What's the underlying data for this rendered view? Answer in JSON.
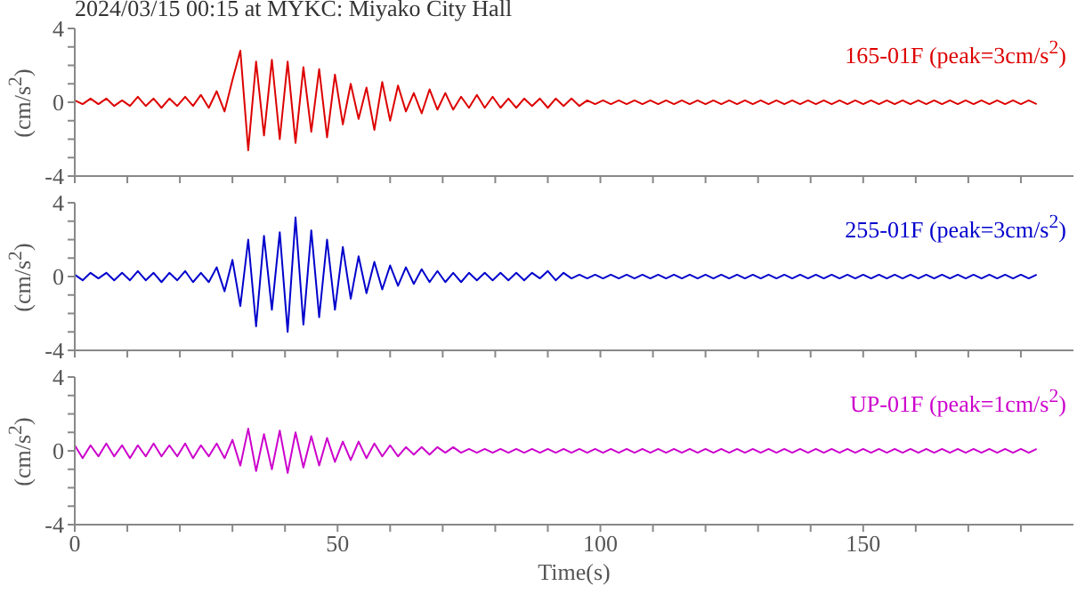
{
  "chart_data": [
    {
      "type": "line",
      "title": "2024/03/15 00:15 at MYKC: Miyako City Hall",
      "annotations": [
        "165-01F (peak=3cm/s$^{2}$)"
      ],
      "ylabel": "(cm/s$^{2}$)",
      "tick_labels": "y",
      "x": [
        0,
        1.5,
        3,
        4.5,
        6,
        7.5,
        9,
        10.5,
        12,
        13.5,
        15,
        16.5,
        18,
        19.5,
        21,
        22.5,
        24,
        25.5,
        27,
        28.5,
        30,
        31.5,
        33,
        34.5,
        36,
        37.5,
        39,
        40.5,
        42,
        43.5,
        45,
        46.5,
        48,
        49.5,
        51,
        52.5,
        54,
        55.5,
        57,
        58.5,
        60,
        61.5,
        63,
        64.5,
        66,
        67.5,
        69,
        70.5,
        72,
        73.5,
        75,
        76.5,
        78,
        79.5,
        81,
        82.5,
        84,
        85.5,
        87,
        88.5,
        90,
        91.5,
        93,
        94.5,
        96,
        97.5,
        99,
        100.5,
        102,
        103.5,
        105,
        106.5,
        108,
        109.5,
        111,
        112.5,
        114,
        115.5,
        117,
        118.5,
        120,
        121.5,
        123,
        124.5,
        126,
        127.5,
        129,
        130.5,
        132,
        133.5,
        135,
        136.5,
        138,
        139.5,
        141,
        142.5,
        144,
        145.5,
        147,
        148.5,
        150,
        151.5,
        153,
        154.5,
        156,
        157.5,
        159,
        160.5,
        162,
        163.5,
        165,
        166.5,
        168,
        169.5,
        171,
        172.5,
        174,
        175.5,
        177,
        178.5,
        180,
        181.5,
        183
      ],
      "series": [
        {
          "color": "#dd0000",
          "values": [
            0.1,
            -0.1,
            0.2,
            -0.1,
            0.2,
            -0.2,
            0.1,
            -0.2,
            0.3,
            -0.2,
            0.2,
            -0.3,
            0.2,
            -0.2,
            0.3,
            -0.2,
            0.4,
            -0.3,
            0.6,
            -0.5,
            1.2,
            2.8,
            -2.6,
            2.2,
            -1.8,
            2.3,
            -2.0,
            2.2,
            -2.2,
            1.9,
            -1.6,
            1.8,
            -1.9,
            1.5,
            -1.2,
            1.0,
            -0.9,
            0.8,
            -1.5,
            1.1,
            -1.0,
            0.9,
            -0.5,
            0.5,
            -0.6,
            0.7,
            -0.4,
            0.5,
            -0.4,
            0.3,
            -0.3,
            0.4,
            -0.3,
            0.3,
            -0.3,
            0.2,
            -0.3,
            0.2,
            -0.2,
            0.2,
            -0.3,
            0.2,
            -0.2,
            0.2,
            -0.2,
            0.1,
            -0.1,
            0.1,
            -0.1,
            0.1,
            -0.1,
            0.1,
            -0.1,
            0.1,
            -0.1,
            0.1,
            -0.1,
            0.1,
            -0.1,
            0.1,
            -0.1,
            0.1,
            -0.1,
            0.1,
            -0.1,
            0.1,
            -0.1,
            0.1,
            -0.1,
            0.1,
            -0.1,
            0.1,
            -0.1,
            0.1,
            -0.1,
            0.1,
            -0.1,
            0.1,
            -0.1,
            0.1,
            -0.1,
            0.1,
            -0.1,
            0.1,
            -0.1,
            0.1,
            -0.1,
            0.1,
            -0.1,
            0.1,
            -0.1,
            0.1,
            -0.1,
            0.1,
            -0.1,
            0.1,
            -0.1,
            0.1,
            -0.1,
            0.1,
            -0.1,
            0.1,
            -0.1
          ]
        }
      ],
      "xlim": [
        0,
        190
      ],
      "xticks": [
        0,
        {
          "value": 10,
          "label": null
        },
        {
          "value": 20,
          "label": null
        },
        {
          "value": 30,
          "label": null
        },
        {
          "value": 40,
          "label": null
        },
        50,
        {
          "value": 60,
          "label": null
        },
        {
          "value": 70,
          "label": null
        },
        {
          "value": 80,
          "label": null
        },
        {
          "value": 90,
          "label": null
        },
        100,
        {
          "value": 110,
          "label": null
        },
        {
          "value": 120,
          "label": null
        },
        {
          "value": 130,
          "label": null
        },
        {
          "value": 140,
          "label": null
        },
        150,
        {
          "value": 160,
          "label": null
        },
        {
          "value": 170,
          "label": null
        },
        {
          "value": 180,
          "label": null
        }
      ],
      "ylim": [
        -4,
        4
      ],
      "yticks": [
        -4,
        {
          "value": -3,
          "label": null
        },
        {
          "value": -2,
          "label": null
        },
        {
          "value": -1,
          "label": null
        },
        0,
        {
          "value": 1,
          "label": null
        },
        {
          "value": 2,
          "label": null
        },
        {
          "value": 3,
          "label": null
        },
        4
      ]
    },
    {
      "type": "line",
      "annotations": [
        "255-01F (peak=3cm/s$^{2}$)"
      ],
      "ylabel": "(cm/s$^{2}$)",
      "tick_labels": "y",
      "x": [
        0,
        1.5,
        3,
        4.5,
        6,
        7.5,
        9,
        10.5,
        12,
        13.5,
        15,
        16.5,
        18,
        19.5,
        21,
        22.5,
        24,
        25.5,
        27,
        28.5,
        30,
        31.5,
        33,
        34.5,
        36,
        37.5,
        39,
        40.5,
        42,
        43.5,
        45,
        46.5,
        48,
        49.5,
        51,
        52.5,
        54,
        55.5,
        57,
        58.5,
        60,
        61.5,
        63,
        64.5,
        66,
        67.5,
        69,
        70.5,
        72,
        73.5,
        75,
        76.5,
        78,
        79.5,
        81,
        82.5,
        84,
        85.5,
        87,
        88.5,
        90,
        91.5,
        93,
        94.5,
        96,
        97.5,
        99,
        100.5,
        102,
        103.5,
        105,
        106.5,
        108,
        109.5,
        111,
        112.5,
        114,
        115.5,
        117,
        118.5,
        120,
        121.5,
        123,
        124.5,
        126,
        127.5,
        129,
        130.5,
        132,
        133.5,
        135,
        136.5,
        138,
        139.5,
        141,
        142.5,
        144,
        145.5,
        147,
        148.5,
        150,
        151.5,
        153,
        154.5,
        156,
        157.5,
        159,
        160.5,
        162,
        163.5,
        165,
        166.5,
        168,
        169.5,
        171,
        172.5,
        174,
        175.5,
        177,
        178.5,
        180,
        181.5,
        183
      ],
      "series": [
        {
          "color": "#0000cc",
          "values": [
            0.1,
            -0.2,
            0.2,
            -0.1,
            0.2,
            -0.2,
            0.2,
            -0.2,
            0.3,
            -0.2,
            0.2,
            -0.3,
            0.2,
            -0.2,
            0.3,
            -0.3,
            0.2,
            -0.3,
            0.5,
            -0.8,
            0.9,
            -1.6,
            2.0,
            -2.7,
            2.2,
            -1.8,
            2.4,
            -3.0,
            3.2,
            -2.6,
            2.5,
            -2.2,
            2.0,
            -1.8,
            1.6,
            -1.2,
            1.1,
            -0.9,
            0.8,
            -0.7,
            0.6,
            -0.5,
            0.5,
            -0.4,
            0.4,
            -0.3,
            0.3,
            -0.3,
            0.2,
            -0.3,
            0.2,
            -0.2,
            0.2,
            -0.2,
            0.2,
            -0.2,
            0.2,
            -0.2,
            0.2,
            -0.1,
            0.3,
            -0.2,
            0.2,
            -0.1,
            0.1,
            -0.1,
            0.1,
            -0.1,
            0.1,
            -0.1,
            0.1,
            -0.1,
            0.1,
            -0.1,
            0.1,
            -0.1,
            0.1,
            -0.1,
            0.1,
            -0.1,
            0.1,
            -0.1,
            0.1,
            -0.1,
            0.1,
            -0.1,
            0.1,
            -0.1,
            0.1,
            -0.1,
            0.1,
            -0.1,
            0.1,
            -0.1,
            0.1,
            -0.1,
            0.1,
            -0.1,
            0.1,
            -0.1,
            0.1,
            -0.1,
            0.1,
            -0.1,
            0.1,
            -0.1,
            0.1,
            -0.1,
            0.1,
            -0.1,
            0.1,
            -0.1,
            0.1,
            -0.1,
            0.1,
            -0.1,
            0.1,
            -0.1,
            0.1,
            -0.1,
            0.1,
            -0.1,
            0.1
          ]
        }
      ],
      "xlim": [
        0,
        190
      ],
      "xticks": [
        0,
        {
          "value": 10,
          "label": null
        },
        {
          "value": 20,
          "label": null
        },
        {
          "value": 30,
          "label": null
        },
        {
          "value": 40,
          "label": null
        },
        50,
        {
          "value": 60,
          "label": null
        },
        {
          "value": 70,
          "label": null
        },
        {
          "value": 80,
          "label": null
        },
        {
          "value": 90,
          "label": null
        },
        100,
        {
          "value": 110,
          "label": null
        },
        {
          "value": 120,
          "label": null
        },
        {
          "value": 130,
          "label": null
        },
        {
          "value": 140,
          "label": null
        },
        150,
        {
          "value": 160,
          "label": null
        },
        {
          "value": 170,
          "label": null
        },
        {
          "value": 180,
          "label": null
        }
      ],
      "ylim": [
        -4,
        4
      ],
      "yticks": [
        -4,
        {
          "value": -3,
          "label": null
        },
        {
          "value": -2,
          "label": null
        },
        {
          "value": -1,
          "label": null
        },
        0,
        {
          "value": 1,
          "label": null
        },
        {
          "value": 2,
          "label": null
        },
        {
          "value": 3,
          "label": null
        },
        4
      ]
    },
    {
      "type": "line",
      "annotations": [
        "UP-01F (peak=1cm/s$^{2}$)"
      ],
      "ylabel": "(cm/s$^{2}$)",
      "xlabel": "Time(s)",
      "x": [
        0,
        1.5,
        3,
        4.5,
        6,
        7.5,
        9,
        10.5,
        12,
        13.5,
        15,
        16.5,
        18,
        19.5,
        21,
        22.5,
        24,
        25.5,
        27,
        28.5,
        30,
        31.5,
        33,
        34.5,
        36,
        37.5,
        39,
        40.5,
        42,
        43.5,
        45,
        46.5,
        48,
        49.5,
        51,
        52.5,
        54,
        55.5,
        57,
        58.5,
        60,
        61.5,
        63,
        64.5,
        66,
        67.5,
        69,
        70.5,
        72,
        73.5,
        75,
        76.5,
        78,
        79.5,
        81,
        82.5,
        84,
        85.5,
        87,
        88.5,
        90,
        91.5,
        93,
        94.5,
        96,
        97.5,
        99,
        100.5,
        102,
        103.5,
        105,
        106.5,
        108,
        109.5,
        111,
        112.5,
        114,
        115.5,
        117,
        118.5,
        120,
        121.5,
        123,
        124.5,
        126,
        127.5,
        129,
        130.5,
        132,
        133.5,
        135,
        136.5,
        138,
        139.5,
        141,
        142.5,
        144,
        145.5,
        147,
        148.5,
        150,
        151.5,
        153,
        154.5,
        156,
        157.5,
        159,
        160.5,
        162,
        163.5,
        165,
        166.5,
        168,
        169.5,
        171,
        172.5,
        174,
        175.5,
        177,
        178.5,
        180,
        181.5,
        183
      ],
      "series": [
        {
          "color": "#cc00cc",
          "values": [
            0.3,
            -0.4,
            0.3,
            -0.3,
            0.4,
            -0.3,
            0.3,
            -0.4,
            0.3,
            -0.3,
            0.4,
            -0.3,
            0.3,
            -0.3,
            0.4,
            -0.4,
            0.3,
            -0.3,
            0.4,
            -0.4,
            0.6,
            -0.8,
            1.2,
            -1.1,
            0.9,
            -1.0,
            1.1,
            -1.2,
            1.0,
            -0.9,
            0.8,
            -0.8,
            0.7,
            -0.6,
            0.5,
            -0.5,
            0.5,
            -0.4,
            0.4,
            -0.3,
            0.3,
            -0.3,
            0.2,
            -0.2,
            0.2,
            -0.2,
            0.2,
            -0.1,
            0.2,
            -0.1,
            0.1,
            -0.1,
            0.1,
            -0.1,
            0.1,
            -0.1,
            0.1,
            -0.1,
            0.1,
            -0.1,
            0.1,
            -0.1,
            0.1,
            -0.1,
            0.1,
            -0.1,
            0.1,
            -0.1,
            0.1,
            -0.1,
            0.1,
            -0.1,
            0.1,
            -0.1,
            0.1,
            -0.1,
            0.1,
            -0.1,
            0.1,
            -0.1,
            0.1,
            -0.1,
            0.1,
            -0.1,
            0.1,
            -0.1,
            0.1,
            -0.1,
            0.1,
            -0.1,
            0.1,
            -0.1,
            0.1,
            -0.1,
            0.1,
            -0.1,
            0.1,
            -0.1,
            0.1,
            -0.1,
            0.1,
            -0.1,
            0.1,
            -0.1,
            0.1,
            -0.1,
            0.1,
            -0.1,
            0.1,
            -0.1,
            0.1,
            -0.1,
            0.1,
            -0.1,
            0.1,
            -0.1,
            0.1,
            -0.1,
            0.1,
            -0.1,
            0.1,
            -0.1,
            0.1
          ]
        }
      ],
      "xlim": [
        0,
        190
      ],
      "xticks": [
        0,
        {
          "value": 10,
          "label": null
        },
        {
          "value": 20,
          "label": null
        },
        {
          "value": 30,
          "label": null
        },
        {
          "value": 40,
          "label": null
        },
        50,
        {
          "value": 60,
          "label": null
        },
        {
          "value": 70,
          "label": null
        },
        {
          "value": 80,
          "label": null
        },
        {
          "value": 90,
          "label": null
        },
        100,
        {
          "value": 110,
          "label": null
        },
        {
          "value": 120,
          "label": null
        },
        {
          "value": 130,
          "label": null
        },
        {
          "value": 140,
          "label": null
        },
        150,
        {
          "value": 160,
          "label": null
        },
        {
          "value": 170,
          "label": null
        },
        {
          "value": 180,
          "label": null
        }
      ],
      "ylim": [
        -4,
        4
      ],
      "yticks": [
        -4,
        {
          "value": -3,
          "label": null
        },
        {
          "value": -2,
          "label": null
        },
        {
          "value": -1,
          "label": null
        },
        0,
        {
          "value": 1,
          "label": null
        },
        {
          "value": 2,
          "label": null
        },
        {
          "value": 3,
          "label": null
        },
        4
      ]
    }
  ]
}
